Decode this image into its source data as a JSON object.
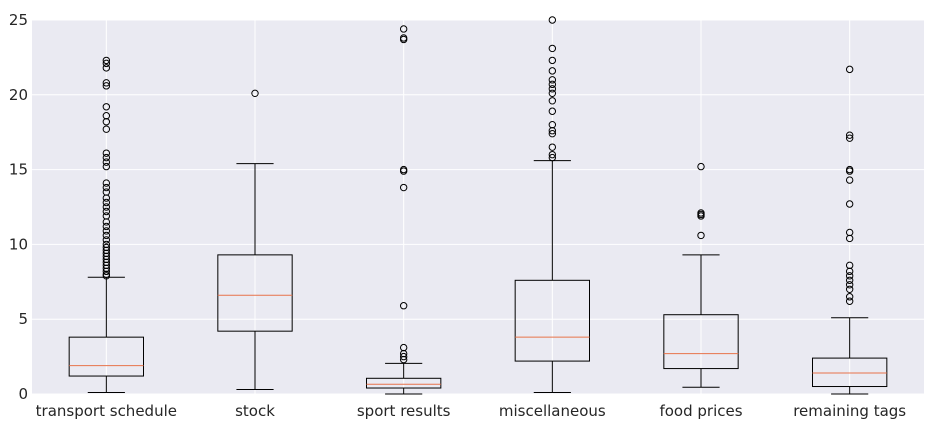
{
  "chart_data": {
    "type": "box",
    "title": "",
    "xlabel": "",
    "ylabel": "",
    "ylim": [
      0,
      25
    ],
    "yticks": [
      "0",
      "5",
      "10",
      "15",
      "20",
      "25"
    ],
    "grid": true,
    "background": "#EAEAF2",
    "grid_color": "#FFFFFF",
    "median_color": "#E8734A",
    "box_color": "#000000",
    "categories": [
      "transport schedule",
      "stock",
      "sport results",
      "miscellaneous",
      "food prices",
      "remaining tags"
    ],
    "boxes": [
      {
        "name": "transport schedule",
        "whisker_low": 0.1,
        "q1": 1.2,
        "median": 1.9,
        "q3": 3.8,
        "whisker_high": 7.8,
        "outliers": [
          7.9,
          8.0,
          8.2,
          8.4,
          8.6,
          8.8,
          9.0,
          9.2,
          9.4,
          9.6,
          9.8,
          10.0,
          10.3,
          10.6,
          10.9,
          11.2,
          11.5,
          11.9,
          12.2,
          12.5,
          12.8,
          13.1,
          13.5,
          13.8,
          14.1,
          15.2,
          15.5,
          15.8,
          16.1,
          17.7,
          18.2,
          18.6,
          19.2,
          20.6,
          20.8,
          21.8,
          22.1,
          22.3
        ]
      },
      {
        "name": "stock",
        "whisker_low": 0.3,
        "q1": 4.2,
        "median": 6.6,
        "q3": 9.3,
        "whisker_high": 15.4,
        "outliers": [
          20.1
        ]
      },
      {
        "name": "sport results",
        "whisker_low": 0.0,
        "q1": 0.4,
        "median": 0.65,
        "q3": 1.05,
        "whisker_high": 2.05,
        "outliers": [
          2.3,
          2.5,
          2.7,
          3.1,
          5.9,
          13.8,
          14.9,
          15.0,
          23.7,
          23.8,
          24.4
        ]
      },
      {
        "name": "miscellaneous",
        "whisker_low": 0.1,
        "q1": 2.2,
        "median": 3.8,
        "q3": 7.6,
        "whisker_high": 15.6,
        "outliers": [
          15.8,
          16.0,
          16.5,
          17.4,
          17.6,
          18.0,
          18.9,
          19.6,
          20.1,
          20.4,
          20.7,
          21.0,
          21.6,
          22.3,
          23.1,
          25.0
        ]
      },
      {
        "name": "food prices",
        "whisker_low": 0.45,
        "q1": 1.7,
        "median": 2.7,
        "q3": 5.3,
        "whisker_high": 9.3,
        "outliers": [
          10.6,
          11.9,
          12.0,
          12.1,
          15.2
        ]
      },
      {
        "name": "remaining tags",
        "whisker_low": 0.0,
        "q1": 0.5,
        "median": 1.4,
        "q3": 2.4,
        "whisker_high": 5.1,
        "outliers": [
          6.2,
          6.5,
          7.0,
          7.3,
          7.6,
          7.9,
          8.2,
          8.6,
          10.4,
          10.8,
          12.7,
          14.3,
          14.9,
          15.0,
          17.1,
          17.3,
          21.7
        ]
      }
    ]
  }
}
